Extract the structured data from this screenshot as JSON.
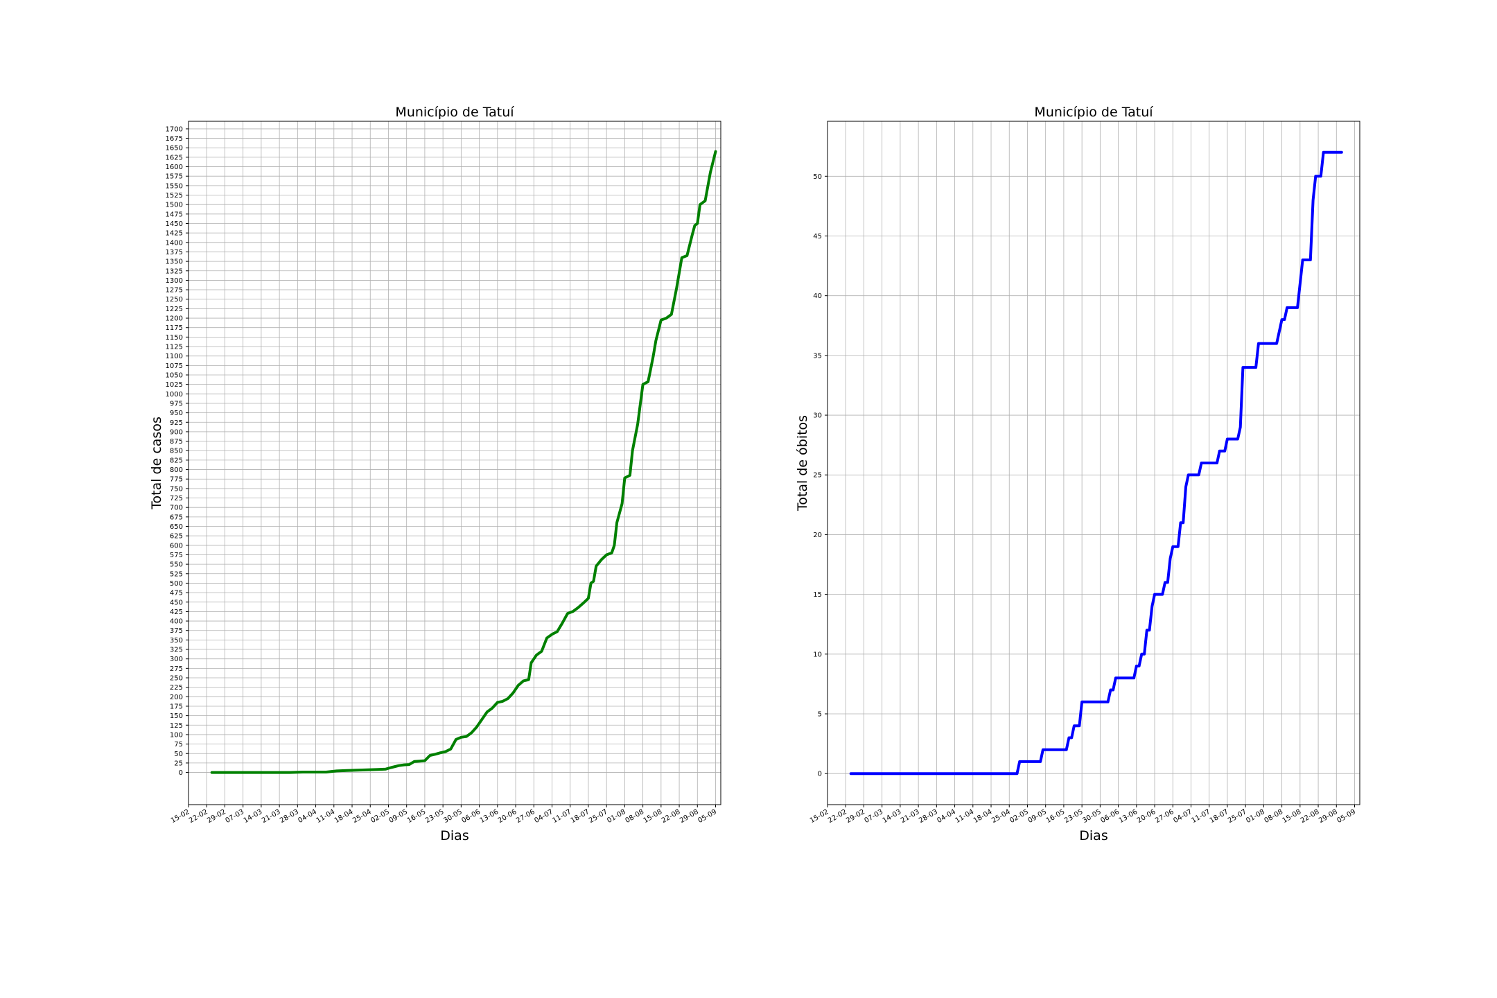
{
  "chart_data": [
    {
      "type": "line",
      "title": "Município de Tatuí",
      "xlabel": "Dias",
      "ylabel": "Total de casos",
      "grid": true,
      "xticks": [
        "15-02",
        "22-02",
        "29-02",
        "07-03",
        "14-03",
        "21-03",
        "28-03",
        "04-04",
        "11-04",
        "18-04",
        "25-04",
        "02-05",
        "09-05",
        "16-05",
        "23-05",
        "30-05",
        "06-06",
        "13-06",
        "20-06",
        "27-06",
        "04-07",
        "11-07",
        "18-07",
        "25-07",
        "01-08",
        "08-08",
        "15-08",
        "22-08",
        "29-08",
        "05-09"
      ],
      "xlim": [
        "2020-02-15",
        "2020-09-07"
      ],
      "ylim": [
        -85,
        1720
      ],
      "yticks": [
        0,
        25,
        50,
        75,
        100,
        125,
        150,
        175,
        200,
        225,
        250,
        275,
        300,
        325,
        350,
        375,
        400,
        425,
        450,
        475,
        500,
        525,
        550,
        575,
        600,
        625,
        650,
        675,
        700,
        725,
        750,
        775,
        800,
        825,
        850,
        875,
        900,
        925,
        950,
        975,
        1000,
        1025,
        1050,
        1075,
        1100,
        1125,
        1150,
        1175,
        1200,
        1225,
        1250,
        1275,
        1300,
        1325,
        1350,
        1375,
        1400,
        1425,
        1450,
        1475,
        1500,
        1525,
        1550,
        1575,
        1600,
        1625,
        1650,
        1675,
        1700
      ],
      "series": [
        {
          "color": "#008000",
          "points": [
            [
              "2020-02-24",
              0
            ],
            [
              "2020-03-10",
              0
            ],
            [
              "2020-03-25",
              0
            ],
            [
              "2020-03-30",
              1
            ],
            [
              "2020-04-04",
              1
            ],
            [
              "2020-04-08",
              1
            ],
            [
              "2020-04-12",
              4
            ],
            [
              "2020-04-16",
              5
            ],
            [
              "2020-04-20",
              6
            ],
            [
              "2020-04-24",
              7
            ],
            [
              "2020-04-28",
              8
            ],
            [
              "2020-05-01",
              9
            ],
            [
              "2020-05-03",
              13
            ],
            [
              "2020-05-06",
              18
            ],
            [
              "2020-05-08",
              20
            ],
            [
              "2020-05-10",
              21
            ],
            [
              "2020-05-12",
              29
            ],
            [
              "2020-05-14",
              30
            ],
            [
              "2020-05-16",
              31
            ],
            [
              "2020-05-18",
              45
            ],
            [
              "2020-05-20",
              48
            ],
            [
              "2020-05-22",
              52
            ],
            [
              "2020-05-24",
              55
            ],
            [
              "2020-05-26",
              62
            ],
            [
              "2020-05-28",
              87
            ],
            [
              "2020-05-30",
              93
            ],
            [
              "2020-06-01",
              95
            ],
            [
              "2020-06-03",
              105
            ],
            [
              "2020-06-05",
              120
            ],
            [
              "2020-06-07",
              140
            ],
            [
              "2020-06-09",
              160
            ],
            [
              "2020-06-11",
              170
            ],
            [
              "2020-06-13",
              185
            ],
            [
              "2020-06-15",
              188
            ],
            [
              "2020-06-17",
              195
            ],
            [
              "2020-06-19",
              210
            ],
            [
              "2020-06-21",
              230
            ],
            [
              "2020-06-23",
              242
            ],
            [
              "2020-06-25",
              245
            ],
            [
              "2020-06-26",
              290
            ],
            [
              "2020-06-28",
              310
            ],
            [
              "2020-06-30",
              320
            ],
            [
              "2020-07-02",
              355
            ],
            [
              "2020-07-04",
              365
            ],
            [
              "2020-07-06",
              372
            ],
            [
              "2020-07-08",
              395
            ],
            [
              "2020-07-10",
              420
            ],
            [
              "2020-07-12",
              425
            ],
            [
              "2020-07-14",
              435
            ],
            [
              "2020-07-16",
              447
            ],
            [
              "2020-07-18",
              460
            ],
            [
              "2020-07-19",
              500
            ],
            [
              "2020-07-20",
              505
            ],
            [
              "2020-07-21",
              545
            ],
            [
              "2020-07-23",
              562
            ],
            [
              "2020-07-25",
              575
            ],
            [
              "2020-07-27",
              580
            ],
            [
              "2020-07-28",
              600
            ],
            [
              "2020-07-29",
              660
            ],
            [
              "2020-07-31",
              710
            ],
            [
              "2020-08-01",
              778
            ],
            [
              "2020-08-03",
              785
            ],
            [
              "2020-08-04",
              850
            ],
            [
              "2020-08-06",
              920
            ],
            [
              "2020-08-08",
              1025
            ],
            [
              "2020-08-10",
              1032
            ],
            [
              "2020-08-11",
              1065
            ],
            [
              "2020-08-12",
              1100
            ],
            [
              "2020-08-13",
              1140
            ],
            [
              "2020-08-15",
              1195
            ],
            [
              "2020-08-17",
              1200
            ],
            [
              "2020-08-19",
              1210
            ],
            [
              "2020-08-21",
              1280
            ],
            [
              "2020-08-23",
              1360
            ],
            [
              "2020-08-25",
              1365
            ],
            [
              "2020-08-27",
              1420
            ],
            [
              "2020-08-28",
              1445
            ],
            [
              "2020-08-29",
              1450
            ],
            [
              "2020-08-30",
              1500
            ],
            [
              "2020-09-01",
              1510
            ],
            [
              "2020-09-03",
              1585
            ],
            [
              "2020-09-05",
              1640
            ]
          ]
        }
      ]
    },
    {
      "type": "line",
      "title": "Município de Tatuí",
      "xlabel": "Dias",
      "ylabel": "Total de óbitos",
      "grid": true,
      "xticks": [
        "15-02",
        "22-02",
        "29-02",
        "07-03",
        "14-03",
        "21-03",
        "28-03",
        "04-04",
        "11-04",
        "18-04",
        "25-04",
        "02-05",
        "09-05",
        "16-05",
        "23-05",
        "30-05",
        "06-06",
        "13-06",
        "20-06",
        "27-06",
        "04-07",
        "11-07",
        "18-07",
        "25-07",
        "01-08",
        "08-08",
        "15-08",
        "22-08",
        "29-08",
        "05-09"
      ],
      "xlim": [
        "2020-02-15",
        "2020-09-07"
      ],
      "ylim": [
        -2.6,
        54.6
      ],
      "yticks": [
        0,
        5,
        10,
        15,
        20,
        25,
        30,
        35,
        40,
        45,
        50
      ],
      "series": [
        {
          "color": "#0000ff",
          "points": [
            [
              "2020-02-24",
              0
            ],
            [
              "2020-04-28",
              0
            ],
            [
              "2020-04-29",
              1
            ],
            [
              "2020-05-07",
              1
            ],
            [
              "2020-05-08",
              2
            ],
            [
              "2020-05-17",
              2
            ],
            [
              "2020-05-18",
              3
            ],
            [
              "2020-05-19",
              3
            ],
            [
              "2020-05-20",
              4
            ],
            [
              "2020-05-22",
              4
            ],
            [
              "2020-05-23",
              6
            ],
            [
              "2020-06-02",
              6
            ],
            [
              "2020-06-03",
              7
            ],
            [
              "2020-06-04",
              7
            ],
            [
              "2020-06-05",
              8
            ],
            [
              "2020-06-12",
              8
            ],
            [
              "2020-06-13",
              9
            ],
            [
              "2020-06-14",
              9
            ],
            [
              "2020-06-15",
              10
            ],
            [
              "2020-06-16",
              10
            ],
            [
              "2020-06-17",
              12
            ],
            [
              "2020-06-18",
              12
            ],
            [
              "2020-06-19",
              14
            ],
            [
              "2020-06-20",
              15
            ],
            [
              "2020-06-23",
              15
            ],
            [
              "2020-06-24",
              16
            ],
            [
              "2020-06-25",
              16
            ],
            [
              "2020-06-26",
              18
            ],
            [
              "2020-06-27",
              19
            ],
            [
              "2020-06-29",
              19
            ],
            [
              "2020-06-30",
              21
            ],
            [
              "2020-07-01",
              21
            ],
            [
              "2020-07-02",
              24
            ],
            [
              "2020-07-03",
              25
            ],
            [
              "2020-07-07",
              25
            ],
            [
              "2020-07-08",
              26
            ],
            [
              "2020-07-14",
              26
            ],
            [
              "2020-07-15",
              27
            ],
            [
              "2020-07-17",
              27
            ],
            [
              "2020-07-18",
              28
            ],
            [
              "2020-07-22",
              28
            ],
            [
              "2020-07-23",
              29
            ],
            [
              "2020-07-24",
              34
            ],
            [
              "2020-07-29",
              34
            ],
            [
              "2020-07-30",
              36
            ],
            [
              "2020-08-06",
              36
            ],
            [
              "2020-08-08",
              38
            ],
            [
              "2020-08-09",
              38
            ],
            [
              "2020-08-10",
              39
            ],
            [
              "2020-08-14",
              39
            ],
            [
              "2020-08-16",
              43
            ],
            [
              "2020-08-19",
              43
            ],
            [
              "2020-08-20",
              48
            ],
            [
              "2020-08-21",
              50
            ],
            [
              "2020-08-23",
              50
            ],
            [
              "2020-08-24",
              52
            ],
            [
              "2020-08-31",
              52
            ]
          ]
        }
      ]
    }
  ]
}
